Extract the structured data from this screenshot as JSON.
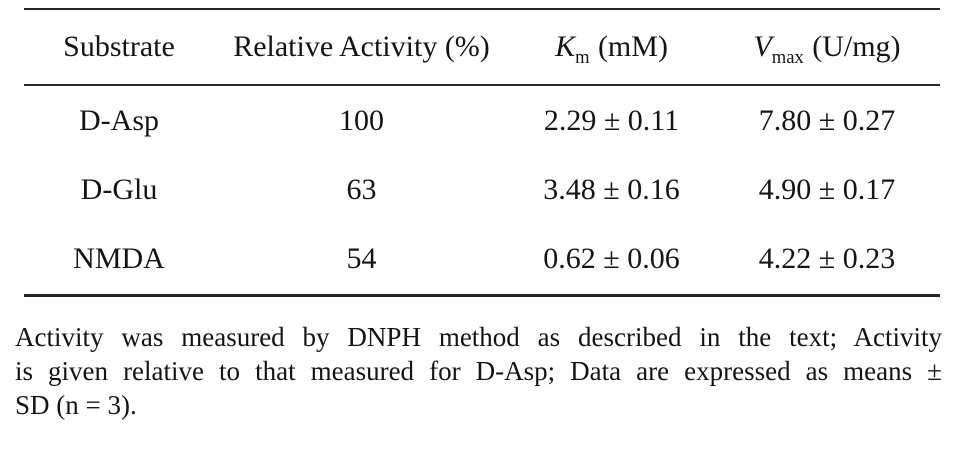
{
  "page": {
    "background": "#ffffff",
    "text_color": "#141414",
    "rule_color": "#262626"
  },
  "table": {
    "headers": {
      "substrate": "Substrate",
      "relative_activity": "Relative Activity (%)",
      "km": {
        "symbol": "K",
        "subscript": "m",
        "unit": "(mM)"
      },
      "vmax": {
        "symbol": "V",
        "subscript": "max",
        "unit": "(U/mg)"
      }
    },
    "rows": [
      {
        "substrate": "D-Asp",
        "relative_activity": "100",
        "km": "2.29 ± 0.11",
        "vmax": "7.80 ± 0.27"
      },
      {
        "substrate": "D-Glu",
        "relative_activity": "63",
        "km": "3.48 ± 0.16",
        "vmax": "4.90 ± 0.17"
      },
      {
        "substrate": "NMDA",
        "relative_activity": "54",
        "km": "0.62 ± 0.06",
        "vmax": "4.22 ± 0.23"
      }
    ]
  },
  "footnote": {
    "lines": [
      "Activity was measured by DNPH method as described in the text; Activity",
      "is given relative to that measured for D-Asp; Data are expressed as means ±",
      "SD (n = 3)."
    ]
  }
}
